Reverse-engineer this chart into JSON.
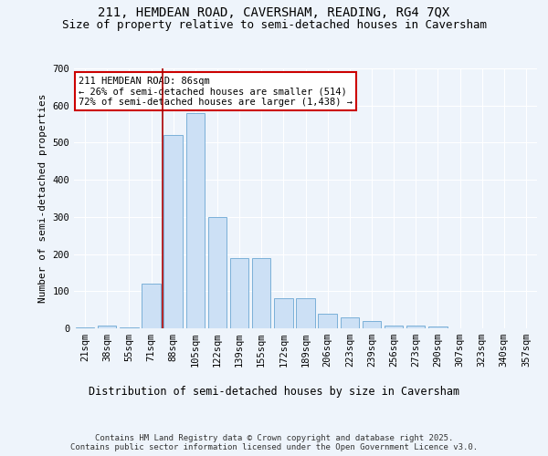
{
  "title": "211, HEMDEAN ROAD, CAVERSHAM, READING, RG4 7QX",
  "subtitle": "Size of property relative to semi-detached houses in Caversham",
  "xlabel": "Distribution of semi-detached houses by size in Caversham",
  "ylabel": "Number of semi-detached properties",
  "categories": [
    "21sqm",
    "38sqm",
    "55sqm",
    "71sqm",
    "88sqm",
    "105sqm",
    "122sqm",
    "139sqm",
    "155sqm",
    "172sqm",
    "189sqm",
    "206sqm",
    "223sqm",
    "239sqm",
    "256sqm",
    "273sqm",
    "290sqm",
    "307sqm",
    "323sqm",
    "340sqm",
    "357sqm"
  ],
  "values": [
    2,
    8,
    2,
    120,
    520,
    580,
    300,
    190,
    190,
    80,
    80,
    40,
    30,
    20,
    8,
    8,
    5,
    0,
    0,
    0,
    0
  ],
  "bar_color": "#cce0f5",
  "bar_edge_color": "#7ab0d8",
  "highlight_color": "#aa0000",
  "annotation_text": "211 HEMDEAN ROAD: 86sqm\n← 26% of semi-detached houses are smaller (514)\n72% of semi-detached houses are larger (1,438) →",
  "annotation_box_color": "#ffffff",
  "annotation_box_edge": "#cc0000",
  "ylim": [
    0,
    700
  ],
  "yticks": [
    0,
    100,
    200,
    300,
    400,
    500,
    600,
    700
  ],
  "title_fontsize": 10,
  "subtitle_fontsize": 9,
  "xlabel_fontsize": 8.5,
  "ylabel_fontsize": 8,
  "tick_fontsize": 7.5,
  "footer_text": "Contains HM Land Registry data © Crown copyright and database right 2025.\nContains public sector information licensed under the Open Government Licence v3.0.",
  "background_color": "#eef4fb",
  "plot_background": "#eef4fb",
  "grid_color": "#ffffff"
}
